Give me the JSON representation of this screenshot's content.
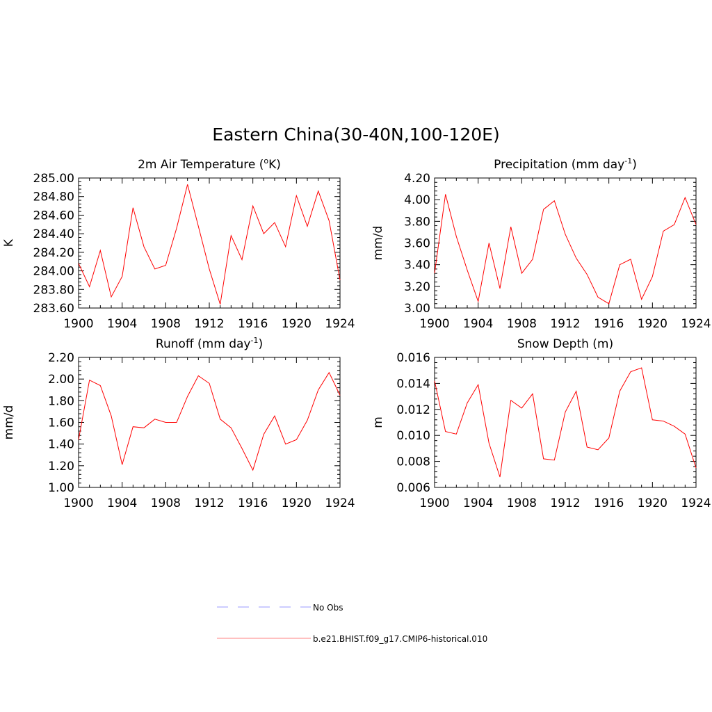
{
  "figure": {
    "title": "Eastern China(30-40N,100-120E)"
  },
  "chart_data": [
    {
      "type": "line",
      "title": "2m Air Temperature (",
      "title_sup": "o",
      "title_end": "K)",
      "ylabel": "K",
      "xlim": [
        1900,
        1924
      ],
      "ylim": [
        283.6,
        285.0
      ],
      "x_ticks": [
        "1900",
        "1904",
        "1908",
        "1912",
        "1916",
        "1920",
        "1924"
      ],
      "y_ticks": [
        "283.60",
        "283.80",
        "284.00",
        "284.20",
        "284.40",
        "284.60",
        "284.80",
        "285.00"
      ],
      "x": [
        1900,
        1901,
        1902,
        1903,
        1904,
        1905,
        1906,
        1907,
        1908,
        1909,
        1910,
        1911,
        1912,
        1913,
        1914,
        1915,
        1916,
        1917,
        1918,
        1919,
        1920,
        1921,
        1922,
        1923,
        1924
      ],
      "series": [
        {
          "values": [
            284.08,
            283.83,
            284.22,
            283.72,
            283.94,
            284.68,
            284.26,
            284.02,
            284.06,
            284.46,
            284.93,
            284.48,
            284.02,
            283.64,
            284.38,
            284.12,
            284.7,
            284.4,
            284.52,
            284.26,
            284.81,
            284.48,
            284.86,
            284.54,
            283.9
          ],
          "color": "#ff0000"
        }
      ]
    },
    {
      "type": "line",
      "title": "Precipitation (mm day",
      "title_sup": "-1",
      "title_end": ")",
      "ylabel": "mm/d",
      "xlim": [
        1900,
        1924
      ],
      "ylim": [
        3.0,
        4.2
      ],
      "x_ticks": [
        "1900",
        "1904",
        "1908",
        "1912",
        "1916",
        "1920",
        "1924"
      ],
      "y_ticks": [
        "3.00",
        "3.20",
        "3.40",
        "3.60",
        "3.80",
        "4.00",
        "4.20"
      ],
      "x": [
        1900,
        1901,
        1902,
        1903,
        1904,
        1905,
        1906,
        1907,
        1908,
        1909,
        1910,
        1911,
        1912,
        1913,
        1914,
        1915,
        1916,
        1917,
        1918,
        1919,
        1920,
        1921,
        1922,
        1923,
        1924
      ],
      "series": [
        {
          "values": [
            3.32,
            4.05,
            3.66,
            3.35,
            3.06,
            3.6,
            3.18,
            3.75,
            3.32,
            3.45,
            3.91,
            3.99,
            3.68,
            3.46,
            3.31,
            3.1,
            3.04,
            3.4,
            3.45,
            3.08,
            3.29,
            3.71,
            3.77,
            4.02,
            3.77
          ],
          "color": "#ff0000"
        }
      ]
    },
    {
      "type": "line",
      "title": "Runoff (mm day",
      "title_sup": "-1",
      "title_end": ")",
      "ylabel": "mm/d",
      "xlim": [
        1900,
        1924
      ],
      "ylim": [
        1.0,
        2.2
      ],
      "x_ticks": [
        "1900",
        "1904",
        "1908",
        "1912",
        "1916",
        "1920",
        "1924"
      ],
      "y_ticks": [
        "1.00",
        "1.20",
        "1.40",
        "1.60",
        "1.80",
        "2.00",
        "2.20"
      ],
      "x": [
        1900,
        1901,
        1902,
        1903,
        1904,
        1905,
        1906,
        1907,
        1908,
        1909,
        1910,
        1911,
        1912,
        1913,
        1914,
        1915,
        1916,
        1917,
        1918,
        1919,
        1920,
        1921,
        1922,
        1923,
        1924
      ],
      "series": [
        {
          "values": [
            1.44,
            1.99,
            1.94,
            1.66,
            1.21,
            1.56,
            1.55,
            1.63,
            1.6,
            1.6,
            1.84,
            2.03,
            1.96,
            1.63,
            1.55,
            1.36,
            1.16,
            1.49,
            1.66,
            1.4,
            1.44,
            1.62,
            1.9,
            2.06,
            1.85
          ],
          "color": "#ff0000"
        }
      ]
    },
    {
      "type": "line",
      "title": "Snow Depth (m)",
      "title_sup": "",
      "title_end": "",
      "ylabel": "m",
      "xlim": [
        1900,
        1924
      ],
      "ylim": [
        0.006,
        0.016
      ],
      "x_ticks": [
        "1900",
        "1904",
        "1908",
        "1912",
        "1916",
        "1920",
        "1924"
      ],
      "y_ticks": [
        "0.006",
        "0.008",
        "0.010",
        "0.012",
        "0.014",
        "0.016"
      ],
      "x": [
        1900,
        1901,
        1902,
        1903,
        1904,
        1905,
        1906,
        1907,
        1908,
        1909,
        1910,
        1911,
        1912,
        1913,
        1914,
        1915,
        1916,
        1917,
        1918,
        1919,
        1920,
        1921,
        1922,
        1923,
        1924
      ],
      "series": [
        {
          "values": [
            0.0142,
            0.0103,
            0.0101,
            0.0125,
            0.0139,
            0.0094,
            0.0068,
            0.0127,
            0.0121,
            0.0132,
            0.0082,
            0.0081,
            0.0118,
            0.0134,
            0.0091,
            0.0089,
            0.0098,
            0.0134,
            0.0149,
            0.0152,
            0.0112,
            0.0111,
            0.0107,
            0.0101,
            0.0075
          ],
          "color": "#ff0000"
        }
      ]
    }
  ],
  "legend": [
    {
      "label": "No Obs",
      "style": "dashed",
      "color": "#9999ff"
    },
    {
      "label": "b.e21.BHIST.f09_g17.CMIP6-historical.010",
      "style": "solid",
      "color": "#ff8080"
    }
  ]
}
